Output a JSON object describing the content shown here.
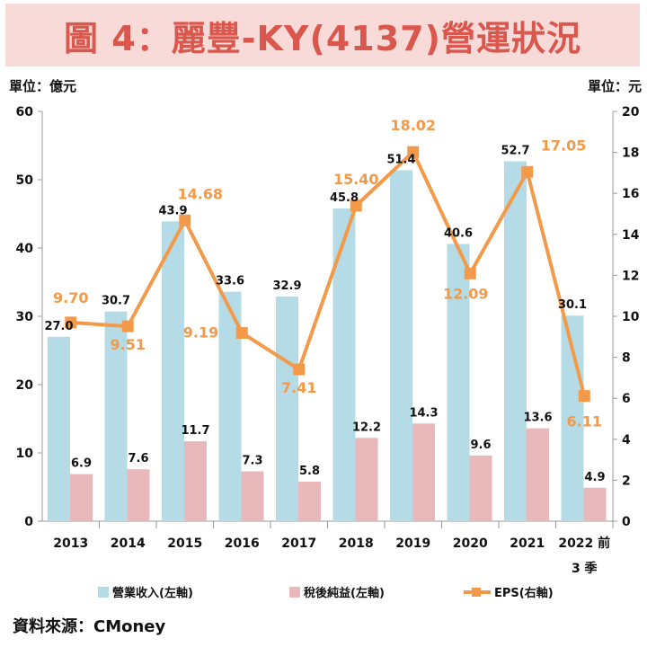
{
  "title": "圖 4：麗豐-KY(4137)營運狀況",
  "source": "資料來源：CMoney",
  "colors": {
    "title_bg": "#f8dad8",
    "title_text": "#d9574c",
    "revenue": "#b5dce6",
    "net_income": "#e9b8bb",
    "eps": "#f29a4a",
    "eps_label": "#f29a4a"
  },
  "chart_data": {
    "type": "bar",
    "categories": [
      "2013",
      "2014",
      "2015",
      "2016",
      "2017",
      "2018",
      "2019",
      "2020",
      "2021",
      "2022 前\n3 季"
    ],
    "category_labels": [
      [
        "2013"
      ],
      [
        "2014"
      ],
      [
        "2015"
      ],
      [
        "2016"
      ],
      [
        "2017"
      ],
      [
        "2018"
      ],
      [
        "2019"
      ],
      [
        "2020"
      ],
      [
        "2021"
      ],
      [
        "2022 前",
        "3 季"
      ]
    ],
    "left_axis": {
      "unit_label": "單位：億元",
      "ylim": [
        0,
        60
      ],
      "ticks": [
        0,
        10,
        20,
        30,
        40,
        50,
        60
      ]
    },
    "right_axis": {
      "unit_label": "單位：元",
      "ylim": [
        0,
        20
      ],
      "ticks": [
        0,
        2,
        4,
        6,
        8,
        10,
        12,
        14,
        16,
        18,
        20
      ]
    },
    "series": [
      {
        "name": "營業收入(左軸)",
        "type": "bar",
        "axis": "left",
        "values": [
          27.0,
          30.7,
          43.9,
          33.6,
          32.9,
          45.8,
          51.4,
          40.6,
          52.7,
          30.1
        ],
        "labels": [
          "27.0",
          "30.7",
          "43.9",
          "33.6",
          "32.9",
          "45.8",
          "51.4",
          "40.6",
          "52.7",
          "30.1"
        ]
      },
      {
        "name": "稅後純益(左軸)",
        "type": "bar",
        "axis": "left",
        "values": [
          6.9,
          7.6,
          11.7,
          7.3,
          5.8,
          12.2,
          14.3,
          9.6,
          13.6,
          4.9
        ],
        "labels": [
          "6.9",
          "7.6",
          "11.7",
          "7.3",
          "5.8",
          "12.2",
          "14.3",
          "9.6",
          "13.6",
          "4.9"
        ]
      },
      {
        "name": "EPS(右軸)",
        "type": "line",
        "axis": "right",
        "values": [
          9.7,
          9.51,
          14.68,
          9.19,
          7.41,
          15.4,
          18.02,
          12.09,
          17.05,
          6.11
        ],
        "labels": [
          "9.70",
          "9.51",
          "14.68",
          "9.19",
          "7.41",
          "15.40",
          "18.02",
          "12.09",
          "17.05",
          "6.11"
        ]
      }
    ],
    "legend_position": "bottom",
    "grid": false
  }
}
